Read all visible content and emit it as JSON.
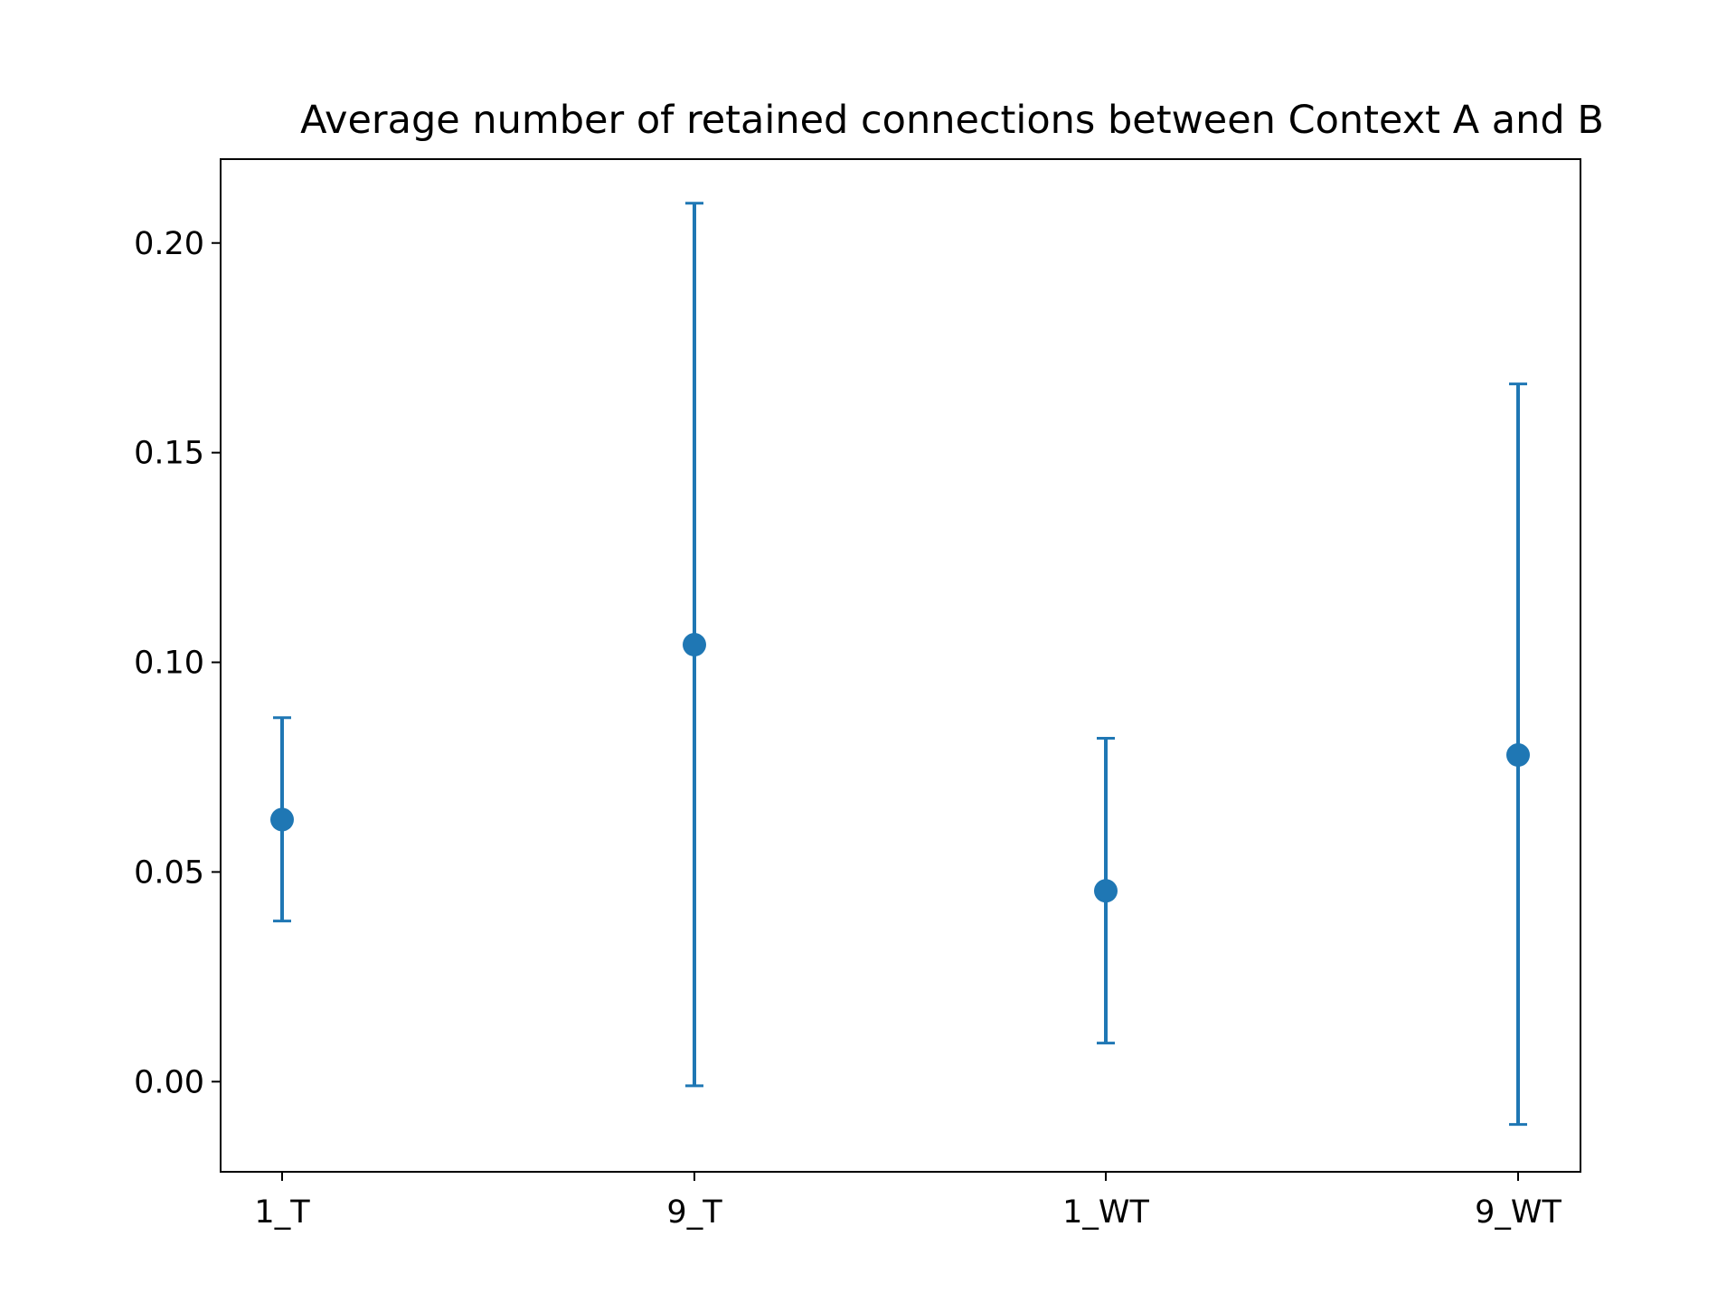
{
  "chart_data": {
    "type": "scatter",
    "title": "Average number of retained connections between Context A and B",
    "xlabel": "",
    "ylabel": "",
    "categories": [
      "1_T",
      "9_T",
      "1_WT",
      "9_WT"
    ],
    "series": [
      {
        "values": [
          0.0625,
          0.1042,
          0.0455,
          0.0779
        ],
        "error_low": [
          0.0383,
          -0.001,
          0.0092,
          -0.0102
        ],
        "error_high": [
          0.0868,
          0.2095,
          0.0819,
          0.1664
        ],
        "color": "#1f77b4"
      }
    ],
    "ylim": [
      -0.0215,
      0.22
    ],
    "yticks": [
      0.0,
      0.05,
      0.1,
      0.15,
      0.2
    ],
    "ytick_labels": [
      "0.00",
      "0.05",
      "0.10",
      "0.15",
      "0.20"
    ],
    "grid": false,
    "legend": "none"
  }
}
